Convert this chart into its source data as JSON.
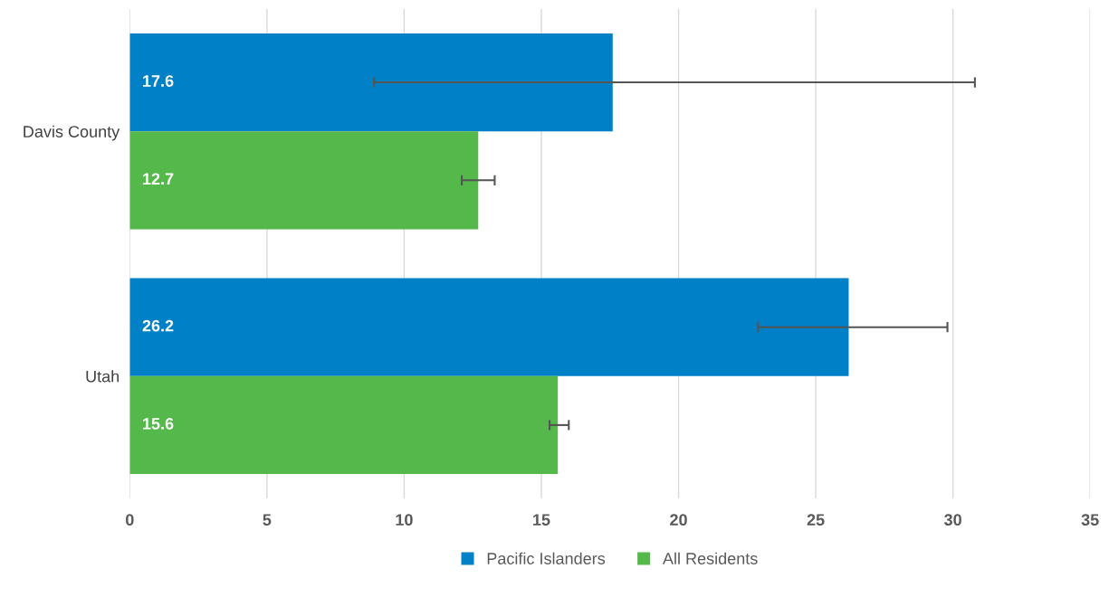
{
  "chart_data": {
    "type": "bar",
    "orientation": "horizontal",
    "categories": [
      "Davis County",
      "Utah"
    ],
    "series": [
      {
        "name": "Pacific Islanders",
        "color": "#0080c6",
        "values": [
          17.6,
          26.2
        ],
        "errors": [
          [
            8.9,
            30.8
          ],
          [
            22.9,
            29.8
          ]
        ]
      },
      {
        "name": "All Residents",
        "color": "#55b84b",
        "values": [
          12.7,
          15.6
        ],
        "errors": [
          [
            12.1,
            13.3
          ],
          [
            15.3,
            16.0
          ]
        ]
      }
    ],
    "xlim": [
      0,
      35
    ],
    "xticks": [
      0,
      5,
      10,
      15,
      20,
      25,
      30,
      35
    ],
    "grid": "x",
    "legend": "bottom",
    "data_labels": true
  }
}
